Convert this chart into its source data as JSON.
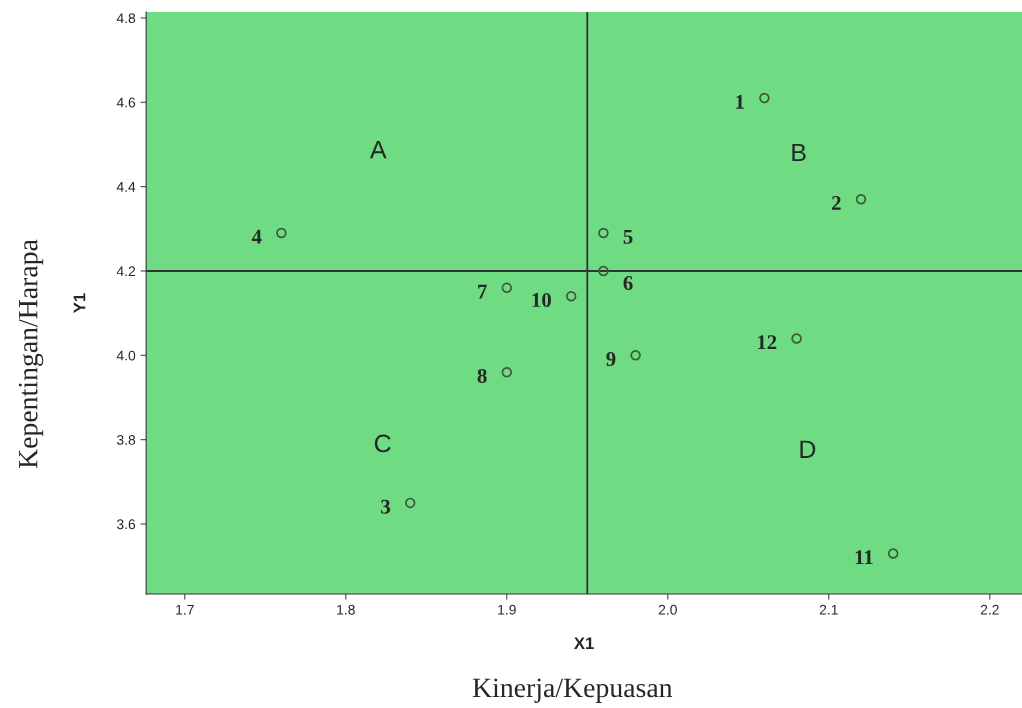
{
  "chart_data": {
    "type": "scatter",
    "xlabel": "X1",
    "ylabel": "Y1",
    "x": [
      2.06,
      2.12,
      1.84,
      1.76,
      1.96,
      1.96,
      1.9,
      1.9,
      1.98,
      1.94,
      2.14,
      2.08
    ],
    "series": [
      {
        "color": "#3a5a3a",
        "values": [
          4.61,
          4.37,
          3.65,
          4.29,
          4.29,
          4.2,
          4.16,
          3.96,
          4.0,
          4.14,
          3.53,
          4.04
        ]
      }
    ],
    "marker": "circle",
    "grid": false,
    "legend": false,
    "xlim": [
      1.676,
      2.22
    ],
    "ylim": [
      3.434,
      4.814
    ],
    "xticks": [
      1.7,
      1.8,
      1.9,
      {
        "value": 2,
        "label": "2.0"
      },
      2.1,
      2.2
    ],
    "yticks": [
      3.6,
      3.8,
      {
        "value": 4,
        "label": "4.0"
      },
      4.2,
      4.4,
      4.6,
      4.8
    ],
    "ref_lines": [
      {
        "axis": "x",
        "value": 1.95,
        "color": "#333333"
      },
      {
        "axis": "y",
        "value": 4.2,
        "color": "#333333"
      }
    ],
    "annotations": [
      {
        "text": "1",
        "x": 2.06,
        "y": 4.61
      },
      {
        "text": "2",
        "x": 2.12,
        "y": 4.37
      },
      {
        "text": "3",
        "x": 1.84,
        "y": 3.65
      },
      {
        "text": "4",
        "x": 1.76,
        "y": 4.29
      },
      {
        "text": "5",
        "x": 1.96,
        "y": 4.29
      },
      {
        "text": "6",
        "x": 1.96,
        "y": 4.2
      },
      {
        "text": "7",
        "x": 1.9,
        "y": 4.16
      },
      {
        "text": "8",
        "x": 1.9,
        "y": 3.96
      },
      {
        "text": "9",
        "x": 1.98,
        "y": 4.0
      },
      {
        "text": "10",
        "x": 1.94,
        "y": 4.14
      },
      {
        "text": "11",
        "x": 2.14,
        "y": 3.53
      },
      {
        "text": "12",
        "x": 2.08,
        "y": 4.04
      },
      "A",
      "B",
      "C",
      "D",
      "Kepentingan/Harapa",
      "Kinerja/Kepuasan"
    ]
  }
}
